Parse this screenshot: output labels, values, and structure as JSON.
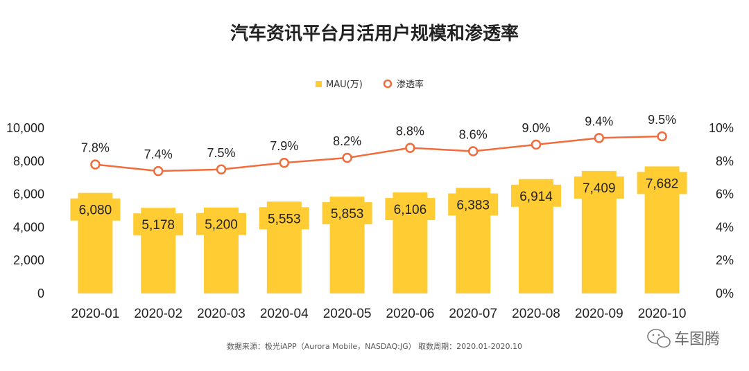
{
  "chart_data": {
    "type": "bar",
    "title": "汽车资讯平台月活用户规模和渗透率",
    "categories": [
      "2020-01",
      "2020-02",
      "2020-03",
      "2020-04",
      "2020-05",
      "2020-06",
      "2020-07",
      "2020-08",
      "2020-09",
      "2020-10"
    ],
    "series": [
      {
        "name": "MAU(万)",
        "type": "bar",
        "axis": "left",
        "color": "#FFCC33",
        "values": [
          6080,
          5178,
          5200,
          5553,
          5853,
          6106,
          6383,
          6914,
          7409,
          7682
        ],
        "labels": [
          "6,080",
          "5,178",
          "5,200",
          "5,553",
          "5,853",
          "6,106",
          "6,383",
          "6,914",
          "7,409",
          "7,682"
        ]
      },
      {
        "name": "渗透率",
        "type": "line",
        "axis": "right",
        "color": "#F26B3A",
        "values": [
          7.8,
          7.4,
          7.5,
          7.9,
          8.2,
          8.8,
          8.6,
          9.0,
          9.4,
          9.5
        ],
        "labels": [
          "7.8%",
          "7.4%",
          "7.5%",
          "7.9%",
          "8.2%",
          "8.8%",
          "8.6%",
          "9.0%",
          "9.4%",
          "9.5%"
        ]
      }
    ],
    "y_left": {
      "ylim": [
        0,
        10000
      ],
      "ticks": [
        "0",
        "2,000",
        "4,000",
        "6,000",
        "8,000",
        "10,000"
      ]
    },
    "y_right": {
      "ylim": [
        0,
        10
      ],
      "ticks": [
        "0%",
        "2%",
        "4%",
        "6%",
        "8%",
        "10%"
      ]
    },
    "grid": false,
    "legend_position": "top-center"
  },
  "source_text": "数据来源：极光iAPP（Aurora Mobile，NASDAQ:JG）   取数周期：2020.01-2020.10",
  "watermark_text": "车图腾",
  "watermark_icon": "wechat-icon"
}
